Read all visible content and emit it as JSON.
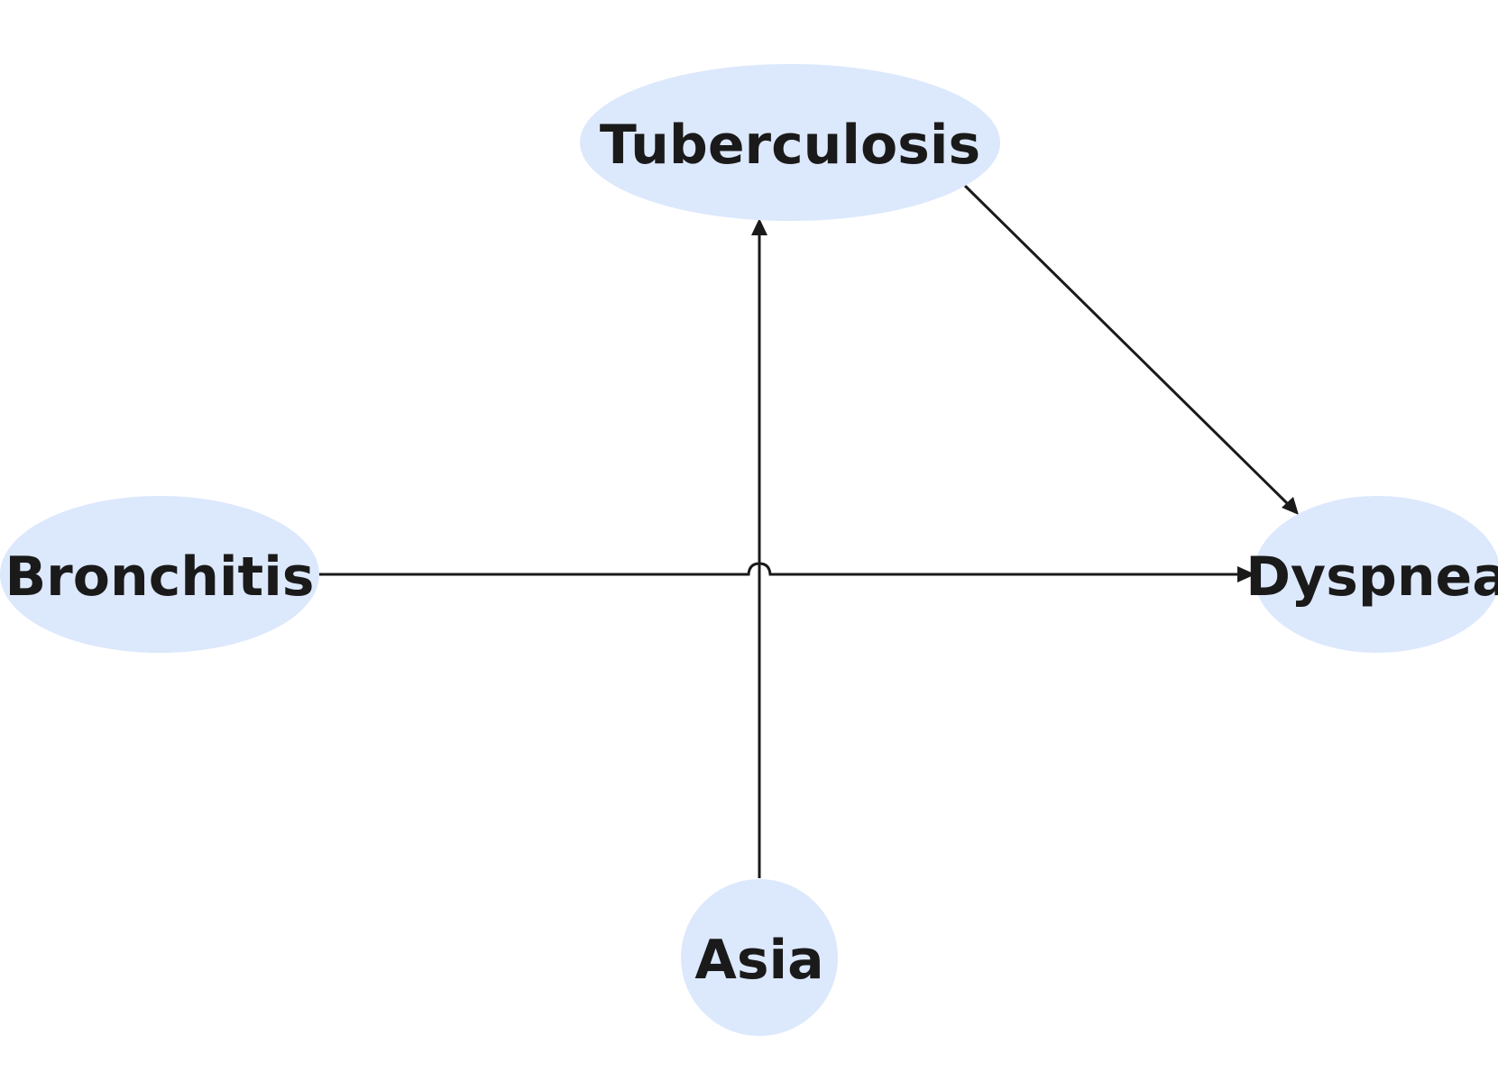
{
  "diagram": {
    "type": "directed-graph",
    "node_fill": "#dce8fc",
    "edge_color": "#1a1a1a",
    "nodes": {
      "tuberculosis": {
        "label": "Tuberculosis"
      },
      "bronchitis": {
        "label": "Bronchitis"
      },
      "dyspnea": {
        "label": "Dyspnea"
      },
      "asia": {
        "label": "Asia"
      }
    },
    "edges": [
      {
        "from": "Asia",
        "to": "Tuberculosis"
      },
      {
        "from": "Tuberculosis",
        "to": "Dyspnea"
      },
      {
        "from": "Bronchitis",
        "to": "Dyspnea"
      }
    ]
  }
}
